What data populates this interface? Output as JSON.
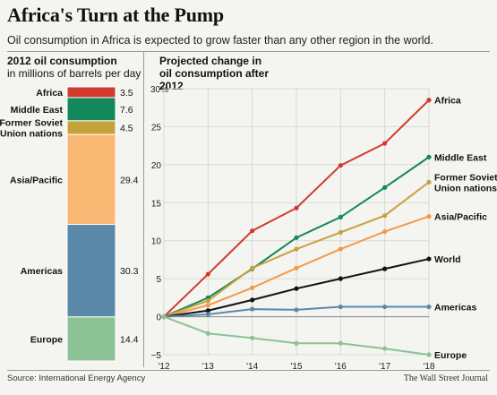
{
  "title": "Africa's Turn at the Pump",
  "subtitle": "Oil consumption in Africa is expected to grow faster than any other region in the world.",
  "source": "Source: International Energy Agency",
  "publisher": "The Wall Street Journal",
  "chart_data": [
    {
      "type": "bar",
      "title": "2012 oil consumption",
      "subtitle": "in millions of barrels per day",
      "orientation": "stacked-vertical",
      "categories": [
        "Africa",
        "Middle East",
        "Former Soviet Union nations",
        "Asia/Pacific",
        "Americas",
        "Europe"
      ],
      "values": [
        3.5,
        7.6,
        4.5,
        29.4,
        30.3,
        14.4
      ],
      "value_labels": [
        "3.5",
        "7.6",
        "4.5",
        "29.4",
        "30.3",
        "14.4"
      ],
      "colors": [
        "#d23a2c",
        "#12885c",
        "#c6a33a",
        "#f9b774",
        "#5a89aa",
        "#8dc196"
      ]
    },
    {
      "type": "line",
      "title": "Projected change in oil consumption after 2012",
      "x": [
        "'12",
        "'13",
        "'14",
        "'15",
        "'16",
        "'17",
        "'18"
      ],
      "ylim": [
        -5,
        30
      ],
      "yticks": [
        -5,
        0,
        5,
        10,
        15,
        20,
        25,
        30
      ],
      "ytick_labels": [
        "−5",
        "0",
        "5",
        "10",
        "15",
        "20",
        "25",
        "30%"
      ],
      "grid": true,
      "series": [
        {
          "name": "Africa",
          "color": "#d23a2c",
          "values": [
            0,
            5.6,
            11.3,
            14.3,
            19.9,
            22.8,
            28.5
          ]
        },
        {
          "name": "Middle East",
          "color": "#12885c",
          "values": [
            0,
            2.5,
            6.3,
            10.4,
            13.1,
            17.0,
            21.0
          ]
        },
        {
          "name": "Former Soviet Union nations",
          "color": "#c6a33a",
          "values": [
            0,
            2.1,
            6.4,
            8.9,
            11.1,
            13.3,
            17.7
          ]
        },
        {
          "name": "Asia/Pacific",
          "color": "#f39a4a",
          "values": [
            0,
            1.5,
            3.8,
            6.4,
            8.9,
            11.2,
            13.2
          ]
        },
        {
          "name": "World",
          "color": "#111111",
          "values": [
            0,
            0.8,
            2.2,
            3.7,
            5.0,
            6.3,
            7.6
          ]
        },
        {
          "name": "Americas",
          "color": "#5a89aa",
          "values": [
            0,
            0.3,
            1.0,
            0.9,
            1.3,
            1.3,
            1.3
          ]
        },
        {
          "name": "Europe",
          "color": "#8dc196",
          "values": [
            0,
            -2.2,
            -2.8,
            -3.5,
            -3.5,
            -4.2,
            -5.0
          ]
        }
      ],
      "line_labels": [
        {
          "lines": [
            "Africa"
          ]
        },
        {
          "lines": [
            "Middle East"
          ]
        },
        {
          "lines": [
            "Former Soviet",
            "Union nations"
          ]
        },
        {
          "lines": [
            "Asia/Pacific"
          ]
        },
        {
          "lines": [
            "World"
          ]
        },
        {
          "lines": [
            "Americas"
          ]
        },
        {
          "lines": [
            "Europe"
          ]
        }
      ]
    }
  ]
}
